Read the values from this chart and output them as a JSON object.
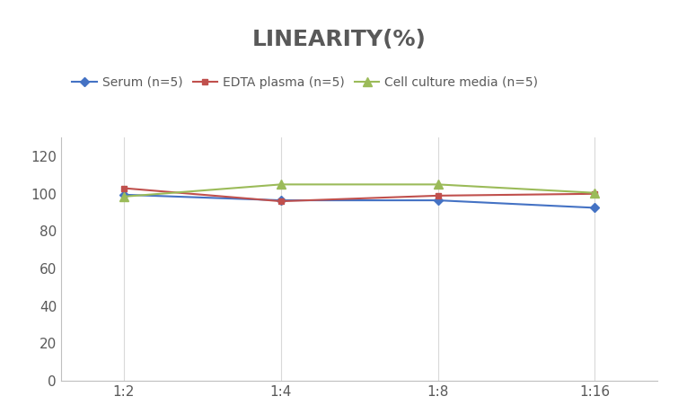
{
  "title": "LINEARITY(%)",
  "title_fontsize": 18,
  "title_fontweight": "bold",
  "title_color": "#595959",
  "x_labels": [
    "1:2",
    "1:4",
    "1:8",
    "1:16"
  ],
  "x_values": [
    0,
    1,
    2,
    3
  ],
  "series": [
    {
      "label": "Serum (n=5)",
      "values": [
        99.5,
        96.5,
        96.5,
        92.5
      ],
      "color": "#4472c4",
      "marker": "D",
      "markersize": 5,
      "linewidth": 1.5
    },
    {
      "label": "EDTA plasma (n=5)",
      "values": [
        103.0,
        96.0,
        99.0,
        100.0
      ],
      "color": "#c0504d",
      "marker": "s",
      "markersize": 5,
      "linewidth": 1.5
    },
    {
      "label": "Cell culture media (n=5)",
      "values": [
        98.5,
        105.0,
        105.0,
        100.5
      ],
      "color": "#9bbb59",
      "marker": "^",
      "markersize": 7,
      "linewidth": 1.5
    }
  ],
  "ylim": [
    0,
    130
  ],
  "yticks": [
    0,
    20,
    40,
    60,
    80,
    100,
    120
  ],
  "background_color": "#ffffff",
  "grid_color": "#d9d9d9",
  "axis_color": "#bfbfbf",
  "tick_color": "#595959",
  "tick_fontsize": 11,
  "legend_fontsize": 10,
  "xlim": [
    -0.4,
    3.4
  ]
}
